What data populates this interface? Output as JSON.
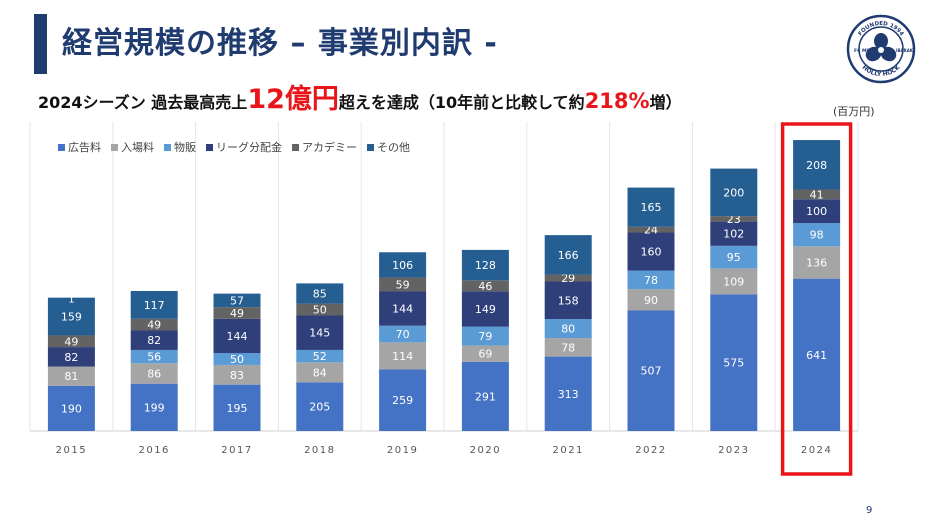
{
  "header": {
    "title": "経営規模の推移 – 事業別内訳 -",
    "subtitle_parts": {
      "p1": "2024シーズン 過去最高売上",
      "p2": "12億円",
      "p3": "超えを達成（10年前と比較して約",
      "p4": "218%",
      "p5": "増）"
    },
    "unit": "(百万円)",
    "page_number": "9"
  },
  "logo": {
    "text_top": "FOUNDED 1994",
    "text_left": "FC MITO",
    "text_bottom": "HOLLY HOCK",
    "text_right": "IBARAKI",
    "icon": "hollyhock-crest-icon"
  },
  "colors": {
    "title": "#1f3b70",
    "highlight": "#e8161b",
    "series": [
      "#4472c4",
      "#a5a5a5",
      "#5b9bd5",
      "#2f3f7a",
      "#636363",
      "#255e91"
    ]
  },
  "chart_data": {
    "type": "bar",
    "stacked": true,
    "categories": [
      "2015",
      "2016",
      "2017",
      "2018",
      "2019",
      "2020",
      "2021",
      "2022",
      "2023",
      "2024"
    ],
    "series": [
      {
        "name": "広告料",
        "values": [
          190,
          199,
          195,
          205,
          259,
          291,
          313,
          507,
          575,
          641
        ]
      },
      {
        "name": "入場料",
        "values": [
          81,
          86,
          83,
          84,
          114,
          69,
          78,
          90,
          109,
          136
        ]
      },
      {
        "name": "物販",
        "values": [
          0,
          56,
          50,
          52,
          70,
          79,
          80,
          78,
          95,
          98
        ]
      },
      {
        "name": "リーグ分配金",
        "values": [
          82,
          82,
          144,
          145,
          144,
          149,
          158,
          160,
          102,
          100
        ]
      },
      {
        "name": "アカデミー",
        "values": [
          49,
          49,
          49,
          50,
          59,
          46,
          29,
          24,
          23,
          41
        ]
      },
      {
        "name": "その他",
        "values": [
          159,
          117,
          57,
          85,
          106,
          128,
          166,
          165,
          200,
          208
        ]
      }
    ],
    "extra_labels": [
      {
        "category": "2015",
        "text": "1"
      }
    ],
    "ylim": [
      0,
      1300
    ],
    "grid": false,
    "legend": "top-left",
    "highlighted_category": "2024"
  }
}
